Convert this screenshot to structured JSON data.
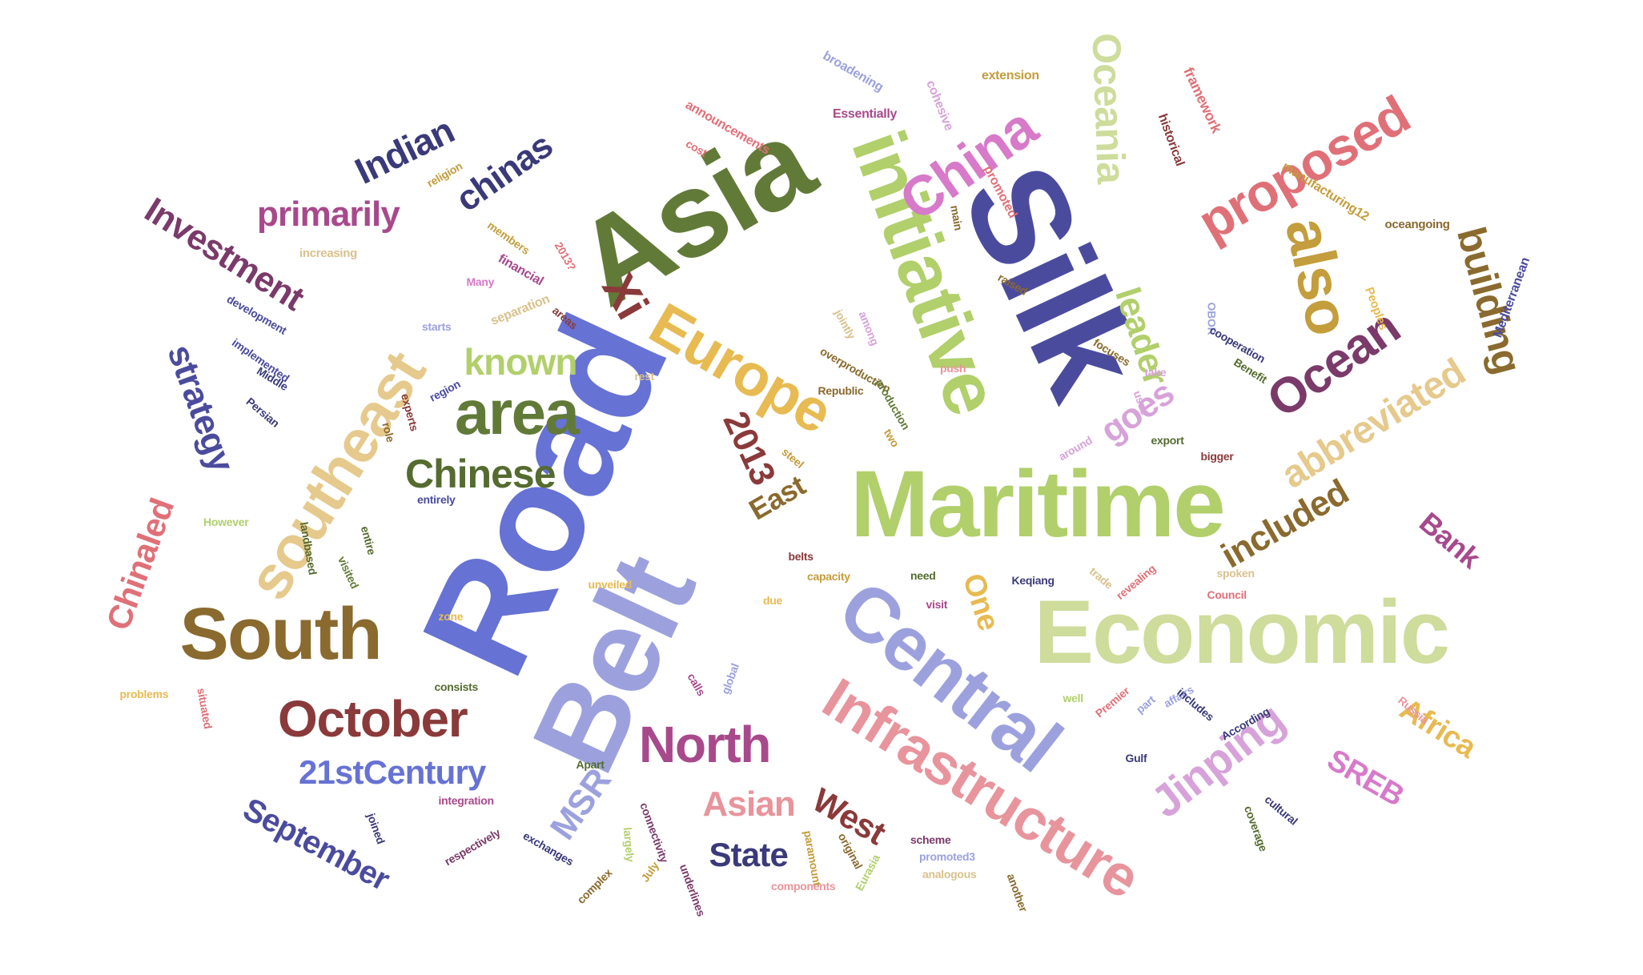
{
  "palette": {
    "olive": "#627a38",
    "periwinkle": "#6672d4",
    "lavender": "#9ca1de",
    "pale_green": "#b1cf6b",
    "pale_sage": "#cedc9c",
    "indigo": "#4b4b9e",
    "tan": "#e6c98c",
    "brown": "#8a6a2e",
    "rose": "#e07078",
    "pink": "#e8949c",
    "magenta": "#a8498c",
    "orchid": "#d77ac9",
    "lilac": "#d7a2d9",
    "maroon": "#8a3a3a",
    "plum": "#7a3a6a",
    "navy": "#3a3a7a",
    "gold": "#e7ba52",
    "mustard": "#c49d3c",
    "khaki": "#d9c18d",
    "dark_green": "#556b2f"
  },
  "words": [
    "Silk",
    "Road",
    "Belt",
    "Asia",
    "Maritime",
    "Economic",
    "Central",
    "initiative",
    "Infrastructure",
    "South",
    "southeast",
    "Europe",
    "also",
    "proposed",
    "China",
    "Oceania",
    "Ocean",
    "area",
    "October",
    "North",
    "Jinping",
    "building",
    "abbreviated",
    "Xi",
    "leader",
    "known",
    "Chinese",
    "Investment",
    "primarily",
    "Indian",
    "chinas",
    "strategy",
    "21stCentury",
    "September",
    "Chinaled",
    "2013",
    "East",
    "included",
    "Bank",
    "Africa",
    "SREB",
    "MSR",
    "Asian",
    "State",
    "West",
    "One",
    "goes",
    "framework",
    "cohesive",
    "broadening",
    "extension",
    "historical",
    "announcements",
    "Essentially",
    "cost",
    "religion",
    "members",
    "manufacturing12",
    "oceangoing",
    "main",
    "promoted",
    "financial",
    "2013?",
    "increasing",
    "Many",
    "Peoples",
    "Mediterranean",
    "development",
    "separation",
    "starts",
    "areas",
    "implemented",
    "Middle",
    "Persian",
    "region",
    "rest",
    "push",
    "overproduction",
    "Republic",
    "among",
    "jointly",
    "raised",
    "focuses",
    "OBOR",
    "cooperation",
    "Benefit",
    "take",
    "usse",
    "production",
    "experts",
    "role",
    "two",
    "steel",
    "export",
    "bigger",
    "around",
    "However",
    "entirely",
    "landbased",
    "entire",
    "visited",
    "belts",
    "capacity",
    "need",
    "Keqiang",
    "trade",
    "spoken",
    "revealing",
    "Council",
    "unveiled",
    "zone",
    "due",
    "visit",
    "consists",
    "problems",
    "situated",
    "calls",
    "global",
    "well",
    "part",
    "affairs",
    "includes",
    "Premier",
    "According",
    "Russia",
    "Gulf",
    "Apart",
    "integration",
    "joined",
    "respectively",
    "exchanges",
    "connectivity",
    "largely",
    "paramount",
    "original",
    "scheme",
    "promoted3",
    "Eurasia",
    "analogous",
    "cultural",
    "coverage",
    "another",
    "complex",
    "underlines",
    "components",
    "July",
    "it"
  ]
}
